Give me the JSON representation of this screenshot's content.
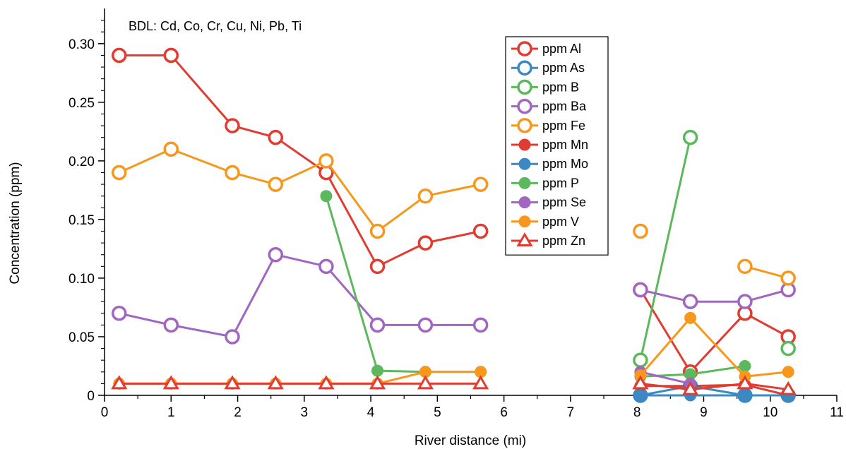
{
  "chart_data": {
    "type": "line",
    "xlabel": "River distance (mi)",
    "ylabel": "Concentration (ppm)",
    "xlim": [
      0,
      11
    ],
    "ylim": [
      0,
      0.33
    ],
    "x_ticks": [
      "0",
      "1",
      "2",
      "3",
      "4",
      "5",
      "6",
      "7",
      "8",
      "9",
      "10",
      "11"
    ],
    "y_ticks": [
      "0",
      "0.05",
      "0.10",
      "0.15",
      "0.20",
      "0.25",
      "0.30"
    ],
    "note": "BDL: Cd, Co, Cr, Cu, Ni, Pb, Ti",
    "grid": false,
    "legend_position": "top-right",
    "series": [
      {
        "name": "ppm Al",
        "color": "#e03c31",
        "marker": "open-circle",
        "points": [
          [
            0.22,
            0.29
          ],
          [
            1.0,
            0.29
          ],
          [
            1.92,
            0.23
          ],
          [
            2.57,
            0.22
          ],
          [
            3.33,
            0.19
          ],
          [
            4.1,
            0.11
          ],
          [
            4.82,
            0.13
          ],
          [
            5.65,
            0.14
          ],
          null,
          [
            8.05,
            0.09
          ],
          [
            8.8,
            0.02
          ],
          [
            9.62,
            0.07
          ],
          [
            10.27,
            0.05
          ]
        ]
      },
      {
        "name": "ppm As",
        "color": "#3b88c3",
        "marker": "open-circle",
        "points": [
          [
            8.05,
            0.0
          ],
          [
            8.8,
            0.008
          ],
          [
            9.62,
            0.0
          ],
          [
            10.27,
            0.0
          ]
        ]
      },
      {
        "name": "ppm B",
        "color": "#5cb85c",
        "marker": "open-circle",
        "points": [
          [
            8.05,
            0.03
          ],
          [
            8.8,
            0.22
          ],
          null,
          [
            10.27,
            0.04
          ]
        ]
      },
      {
        "name": "ppm Ba",
        "color": "#a066c0",
        "marker": "open-circle",
        "points": [
          [
            0.22,
            0.07
          ],
          [
            1.0,
            0.06
          ],
          [
            1.92,
            0.05
          ],
          [
            2.57,
            0.12
          ],
          [
            3.33,
            0.11
          ],
          [
            4.1,
            0.06
          ],
          [
            4.82,
            0.06
          ],
          [
            5.65,
            0.06
          ],
          null,
          [
            8.05,
            0.09
          ],
          [
            8.8,
            0.08
          ],
          [
            9.62,
            0.08
          ],
          [
            10.27,
            0.09
          ]
        ]
      },
      {
        "name": "ppm Fe",
        "color": "#f7981d",
        "marker": "open-circle",
        "points": [
          [
            0.22,
            0.19
          ],
          [
            1.0,
            0.21
          ],
          [
            1.92,
            0.19
          ],
          [
            2.57,
            0.18
          ],
          [
            3.33,
            0.2
          ],
          [
            4.1,
            0.14
          ],
          [
            4.82,
            0.17
          ],
          [
            5.65,
            0.18
          ],
          null,
          [
            8.05,
            0.14
          ],
          null,
          [
            9.62,
            0.11
          ],
          [
            10.27,
            0.1
          ]
        ]
      },
      {
        "name": "ppm Mn",
        "color": "#e03c31",
        "marker": "filled-circle",
        "points": [
          [
            8.05,
            0.008
          ],
          [
            8.8,
            0.008
          ],
          [
            9.62,
            0.009
          ],
          [
            10.27,
            0.0
          ]
        ]
      },
      {
        "name": "ppm Mo",
        "color": "#3b88c3",
        "marker": "filled-circle",
        "points": [
          [
            8.05,
            0.0
          ],
          [
            8.8,
            0.0
          ],
          [
            9.62,
            0.0
          ],
          [
            10.27,
            0.0
          ]
        ]
      },
      {
        "name": "ppm P",
        "color": "#5cb85c",
        "marker": "filled-circle",
        "points": [
          [
            3.33,
            0.17
          ],
          [
            4.1,
            0.021
          ],
          [
            4.82,
            0.02
          ],
          [
            5.65,
            0.02
          ],
          null,
          [
            8.05,
            0.016
          ],
          [
            8.8,
            0.018
          ],
          [
            9.62,
            0.025
          ]
        ]
      },
      {
        "name": "ppm Se",
        "color": "#a066c0",
        "marker": "filled-circle",
        "points": [
          [
            8.05,
            0.02
          ],
          [
            8.8,
            0.01
          ]
        ]
      },
      {
        "name": "ppm V",
        "color": "#f7981d",
        "marker": "filled-circle",
        "points": [
          [
            0.22,
            0.01
          ],
          [
            1.0,
            0.01
          ],
          [
            1.92,
            0.01
          ],
          [
            2.57,
            0.01
          ],
          [
            3.33,
            0.01
          ],
          [
            4.1,
            0.01
          ],
          [
            4.82,
            0.02
          ],
          [
            5.65,
            0.02
          ],
          null,
          [
            8.05,
            0.017
          ],
          [
            8.8,
            0.066
          ],
          [
            9.62,
            0.016
          ],
          [
            10.27,
            0.02
          ]
        ]
      },
      {
        "name": "ppm Zn",
        "color": "#e03c31",
        "marker": "open-triangle",
        "points": [
          [
            0.22,
            0.01
          ],
          [
            1.0,
            0.01
          ],
          [
            1.92,
            0.01
          ],
          [
            2.57,
            0.01
          ],
          [
            3.33,
            0.01
          ],
          [
            4.1,
            0.01
          ],
          [
            4.82,
            0.01
          ],
          [
            5.65,
            0.01
          ],
          null,
          [
            8.05,
            0.01
          ],
          [
            8.8,
            0.005
          ],
          [
            9.62,
            0.01
          ],
          [
            10.27,
            0.005
          ]
        ]
      }
    ]
  }
}
